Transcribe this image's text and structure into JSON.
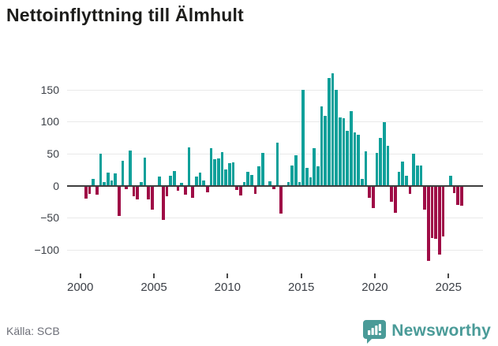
{
  "header": {
    "title": "Nettoinflyttning till Älmhult"
  },
  "footer": {
    "source": "Källa: SCB",
    "brand": "Newsworthy"
  },
  "colors": {
    "positive_bar": "#0FA09A",
    "negative_bar": "#9F0C46",
    "zero_line": "#3d3d3d",
    "gridline": "#e9e9e9",
    "brand_teal": "#4A9B98"
  },
  "chart_data": {
    "type": "bar",
    "title": "Nettoinflyttning till Älmhult",
    "frequency": "quarterly",
    "start": "2000 Q2",
    "x_tick_labels": [
      "2000",
      "2005",
      "2010",
      "2015",
      "2020",
      "2025"
    ],
    "y_tick_values": [
      150,
      100,
      50,
      0,
      -50,
      -100
    ],
    "ylim": [
      -130,
      180
    ],
    "grid": "horizontal",
    "legend": "none",
    "values": [
      -20,
      -13,
      11,
      -14,
      50,
      6,
      20,
      8,
      19,
      -47,
      39,
      -5,
      55,
      -17,
      -21,
      6,
      44,
      -21,
      -37,
      0,
      14,
      -53,
      -17,
      16,
      23,
      -8,
      4,
      -14,
      60,
      -19,
      14,
      20,
      8,
      -11,
      58,
      41,
      43,
      52,
      25,
      35,
      36,
      -7,
      -15,
      5,
      21,
      17,
      -13,
      30,
      51,
      0,
      7,
      -6,
      67,
      -44,
      0,
      5,
      31,
      48,
      6,
      150,
      28,
      13,
      58,
      30,
      124,
      109,
      168,
      175,
      150,
      106,
      105,
      86,
      116,
      83,
      80,
      10,
      54,
      -19,
      -35,
      51,
      74,
      99,
      62,
      -25,
      -43,
      21,
      38,
      15,
      -13,
      50,
      31,
      32,
      -38,
      -117,
      -82,
      -83,
      -108,
      -79,
      0,
      15,
      -12,
      -30,
      -31
    ]
  }
}
